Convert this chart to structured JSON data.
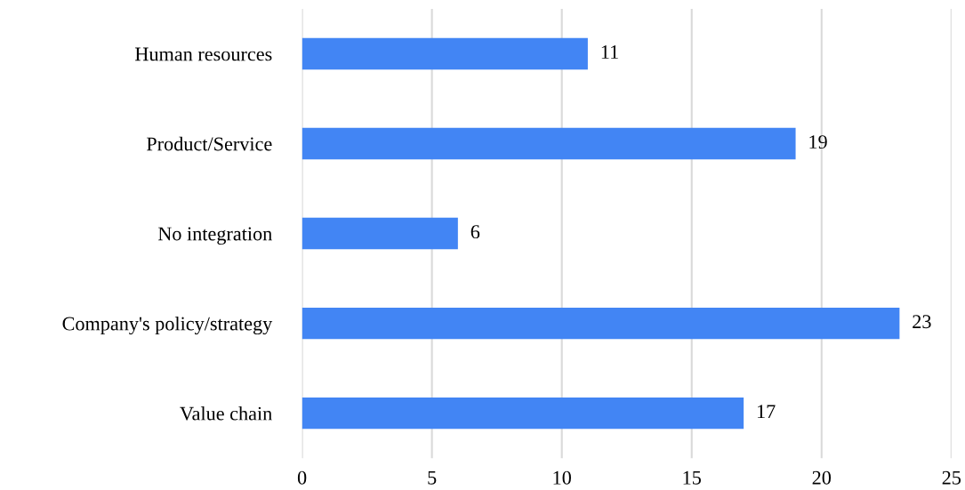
{
  "chart_data": {
    "type": "bar",
    "orientation": "horizontal",
    "categories": [
      "Human resources",
      "Product/Service",
      "No integration",
      "Company's policy/strategy",
      "Value chain"
    ],
    "values": [
      11,
      19,
      6,
      23,
      17
    ],
    "color": "#4285f4",
    "xlim": [
      0,
      25
    ],
    "xticks": [
      0,
      5,
      10,
      15,
      20,
      25
    ],
    "grid": "x",
    "data_labels": true
  }
}
